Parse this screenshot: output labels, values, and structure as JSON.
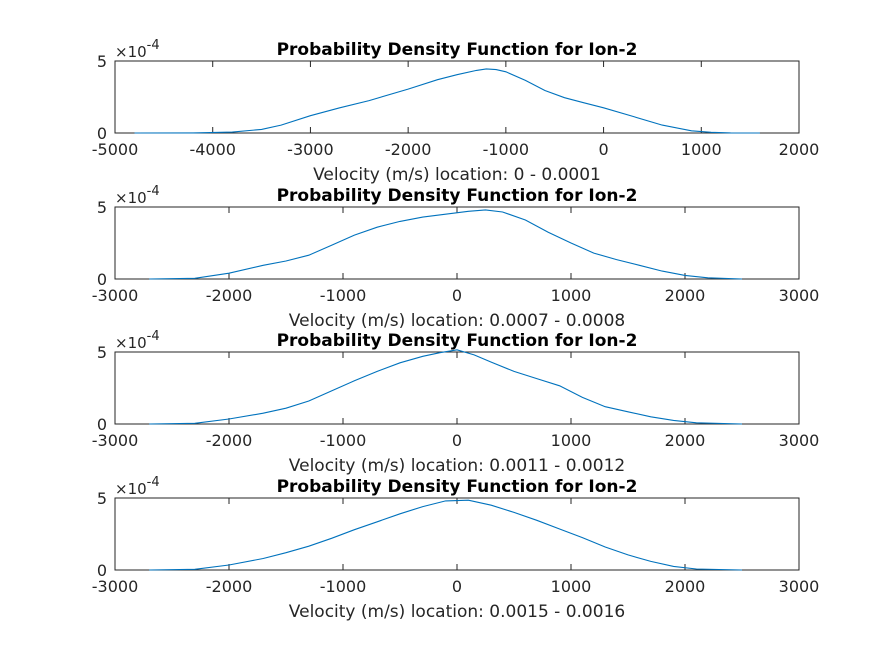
{
  "figure": {
    "background": "#ffffff",
    "line_color": "#0072bd"
  },
  "chart_data": [
    {
      "type": "line",
      "title": "Probability Density Function for Ion-2",
      "xlabel": "Velocity (m/s) location: 0 - 0.0001",
      "ylabel": "",
      "exponent_label": "×10",
      "exponent_power": "-4",
      "xlim": [
        -5000,
        2000
      ],
      "ylim": [
        0,
        5
      ],
      "xticks": [
        "-5000",
        "-4000",
        "-3000",
        "-2000",
        "-1000",
        "0",
        "1000",
        "2000"
      ],
      "yticks": [
        "0",
        "5"
      ],
      "series": [
        {
          "x": [
            -4800,
            -4200,
            -3800,
            -3500,
            -3300,
            -3000,
            -2700,
            -2400,
            -2000,
            -1700,
            -1500,
            -1300,
            -1200,
            -1100,
            -1000,
            -800,
            -600,
            -400,
            -200,
            0,
            300,
            600,
            900,
            1100,
            1300,
            1600
          ],
          "values": [
            0,
            0.01,
            0.06,
            0.25,
            0.55,
            1.2,
            1.75,
            2.25,
            3.05,
            3.7,
            4.05,
            4.35,
            4.45,
            4.4,
            4.25,
            3.65,
            2.95,
            2.45,
            2.1,
            1.75,
            1.15,
            0.55,
            0.15,
            0.05,
            0.01,
            0
          ]
        }
      ]
    },
    {
      "type": "line",
      "title": "Probability Density Function for Ion-2",
      "xlabel": "Velocity (m/s) location: 0.0007 - 0.0008",
      "ylabel": "",
      "exponent_label": "×10",
      "exponent_power": "-4",
      "xlim": [
        -3000,
        3000
      ],
      "ylim": [
        0,
        5
      ],
      "xticks": [
        "-3000",
        "-2000",
        "-1000",
        "0",
        "1000",
        "2000",
        "3000"
      ],
      "yticks": [
        "0",
        "5"
      ],
      "series": [
        {
          "x": [
            -2700,
            -2300,
            -2000,
            -1700,
            -1500,
            -1300,
            -1100,
            -900,
            -700,
            -500,
            -300,
            -100,
            100,
            250,
            400,
            600,
            800,
            1000,
            1200,
            1400,
            1600,
            1800,
            2000,
            2200,
            2500
          ],
          "values": [
            0,
            0.05,
            0.4,
            0.95,
            1.25,
            1.65,
            2.35,
            3.05,
            3.6,
            4.0,
            4.3,
            4.5,
            4.7,
            4.8,
            4.65,
            4.1,
            3.25,
            2.5,
            1.8,
            1.35,
            0.95,
            0.55,
            0.25,
            0.08,
            0
          ]
        }
      ]
    },
    {
      "type": "line",
      "title": "Probability Density Function for Ion-2",
      "xlabel": "Velocity (m/s) location: 0.0011 - 0.0012",
      "ylabel": "",
      "exponent_label": "×10",
      "exponent_power": "-4",
      "xlim": [
        -3000,
        3000
      ],
      "ylim": [
        0,
        5
      ],
      "xticks": [
        "-3000",
        "-2000",
        "-1000",
        "0",
        "1000",
        "2000",
        "3000"
      ],
      "yticks": [
        "0",
        "5"
      ],
      "series": [
        {
          "x": [
            -2700,
            -2300,
            -2000,
            -1700,
            -1500,
            -1300,
            -1100,
            -900,
            -700,
            -500,
            -300,
            -150,
            0,
            150,
            300,
            500,
            700,
            900,
            1100,
            1300,
            1500,
            1700,
            1900,
            2100,
            2500
          ],
          "values": [
            0,
            0.05,
            0.35,
            0.75,
            1.1,
            1.6,
            2.3,
            3.0,
            3.65,
            4.25,
            4.7,
            4.95,
            5.15,
            4.8,
            4.3,
            3.65,
            3.15,
            2.65,
            1.85,
            1.2,
            0.85,
            0.5,
            0.25,
            0.08,
            0
          ]
        }
      ]
    },
    {
      "type": "line",
      "title": "Probability Density Function for Ion-2",
      "xlabel": "Velocity (m/s) location: 0.0015 - 0.0016",
      "ylabel": "",
      "exponent_label": "×10",
      "exponent_power": "-4",
      "xlim": [
        -3000,
        3000
      ],
      "ylim": [
        0,
        5
      ],
      "xticks": [
        "-3000",
        "-2000",
        "-1000",
        "0",
        "1000",
        "2000",
        "3000"
      ],
      "yticks": [
        "0",
        "5"
      ],
      "series": [
        {
          "x": [
            -2700,
            -2300,
            -2000,
            -1700,
            -1500,
            -1300,
            -1100,
            -900,
            -700,
            -500,
            -300,
            -100,
            100,
            300,
            500,
            700,
            900,
            1100,
            1300,
            1500,
            1700,
            1900,
            2100,
            2500
          ],
          "values": [
            0,
            0.05,
            0.35,
            0.8,
            1.2,
            1.65,
            2.2,
            2.8,
            3.35,
            3.9,
            4.4,
            4.8,
            4.85,
            4.5,
            4.0,
            3.45,
            2.85,
            2.25,
            1.6,
            1.05,
            0.6,
            0.25,
            0.07,
            0
          ]
        }
      ]
    }
  ]
}
